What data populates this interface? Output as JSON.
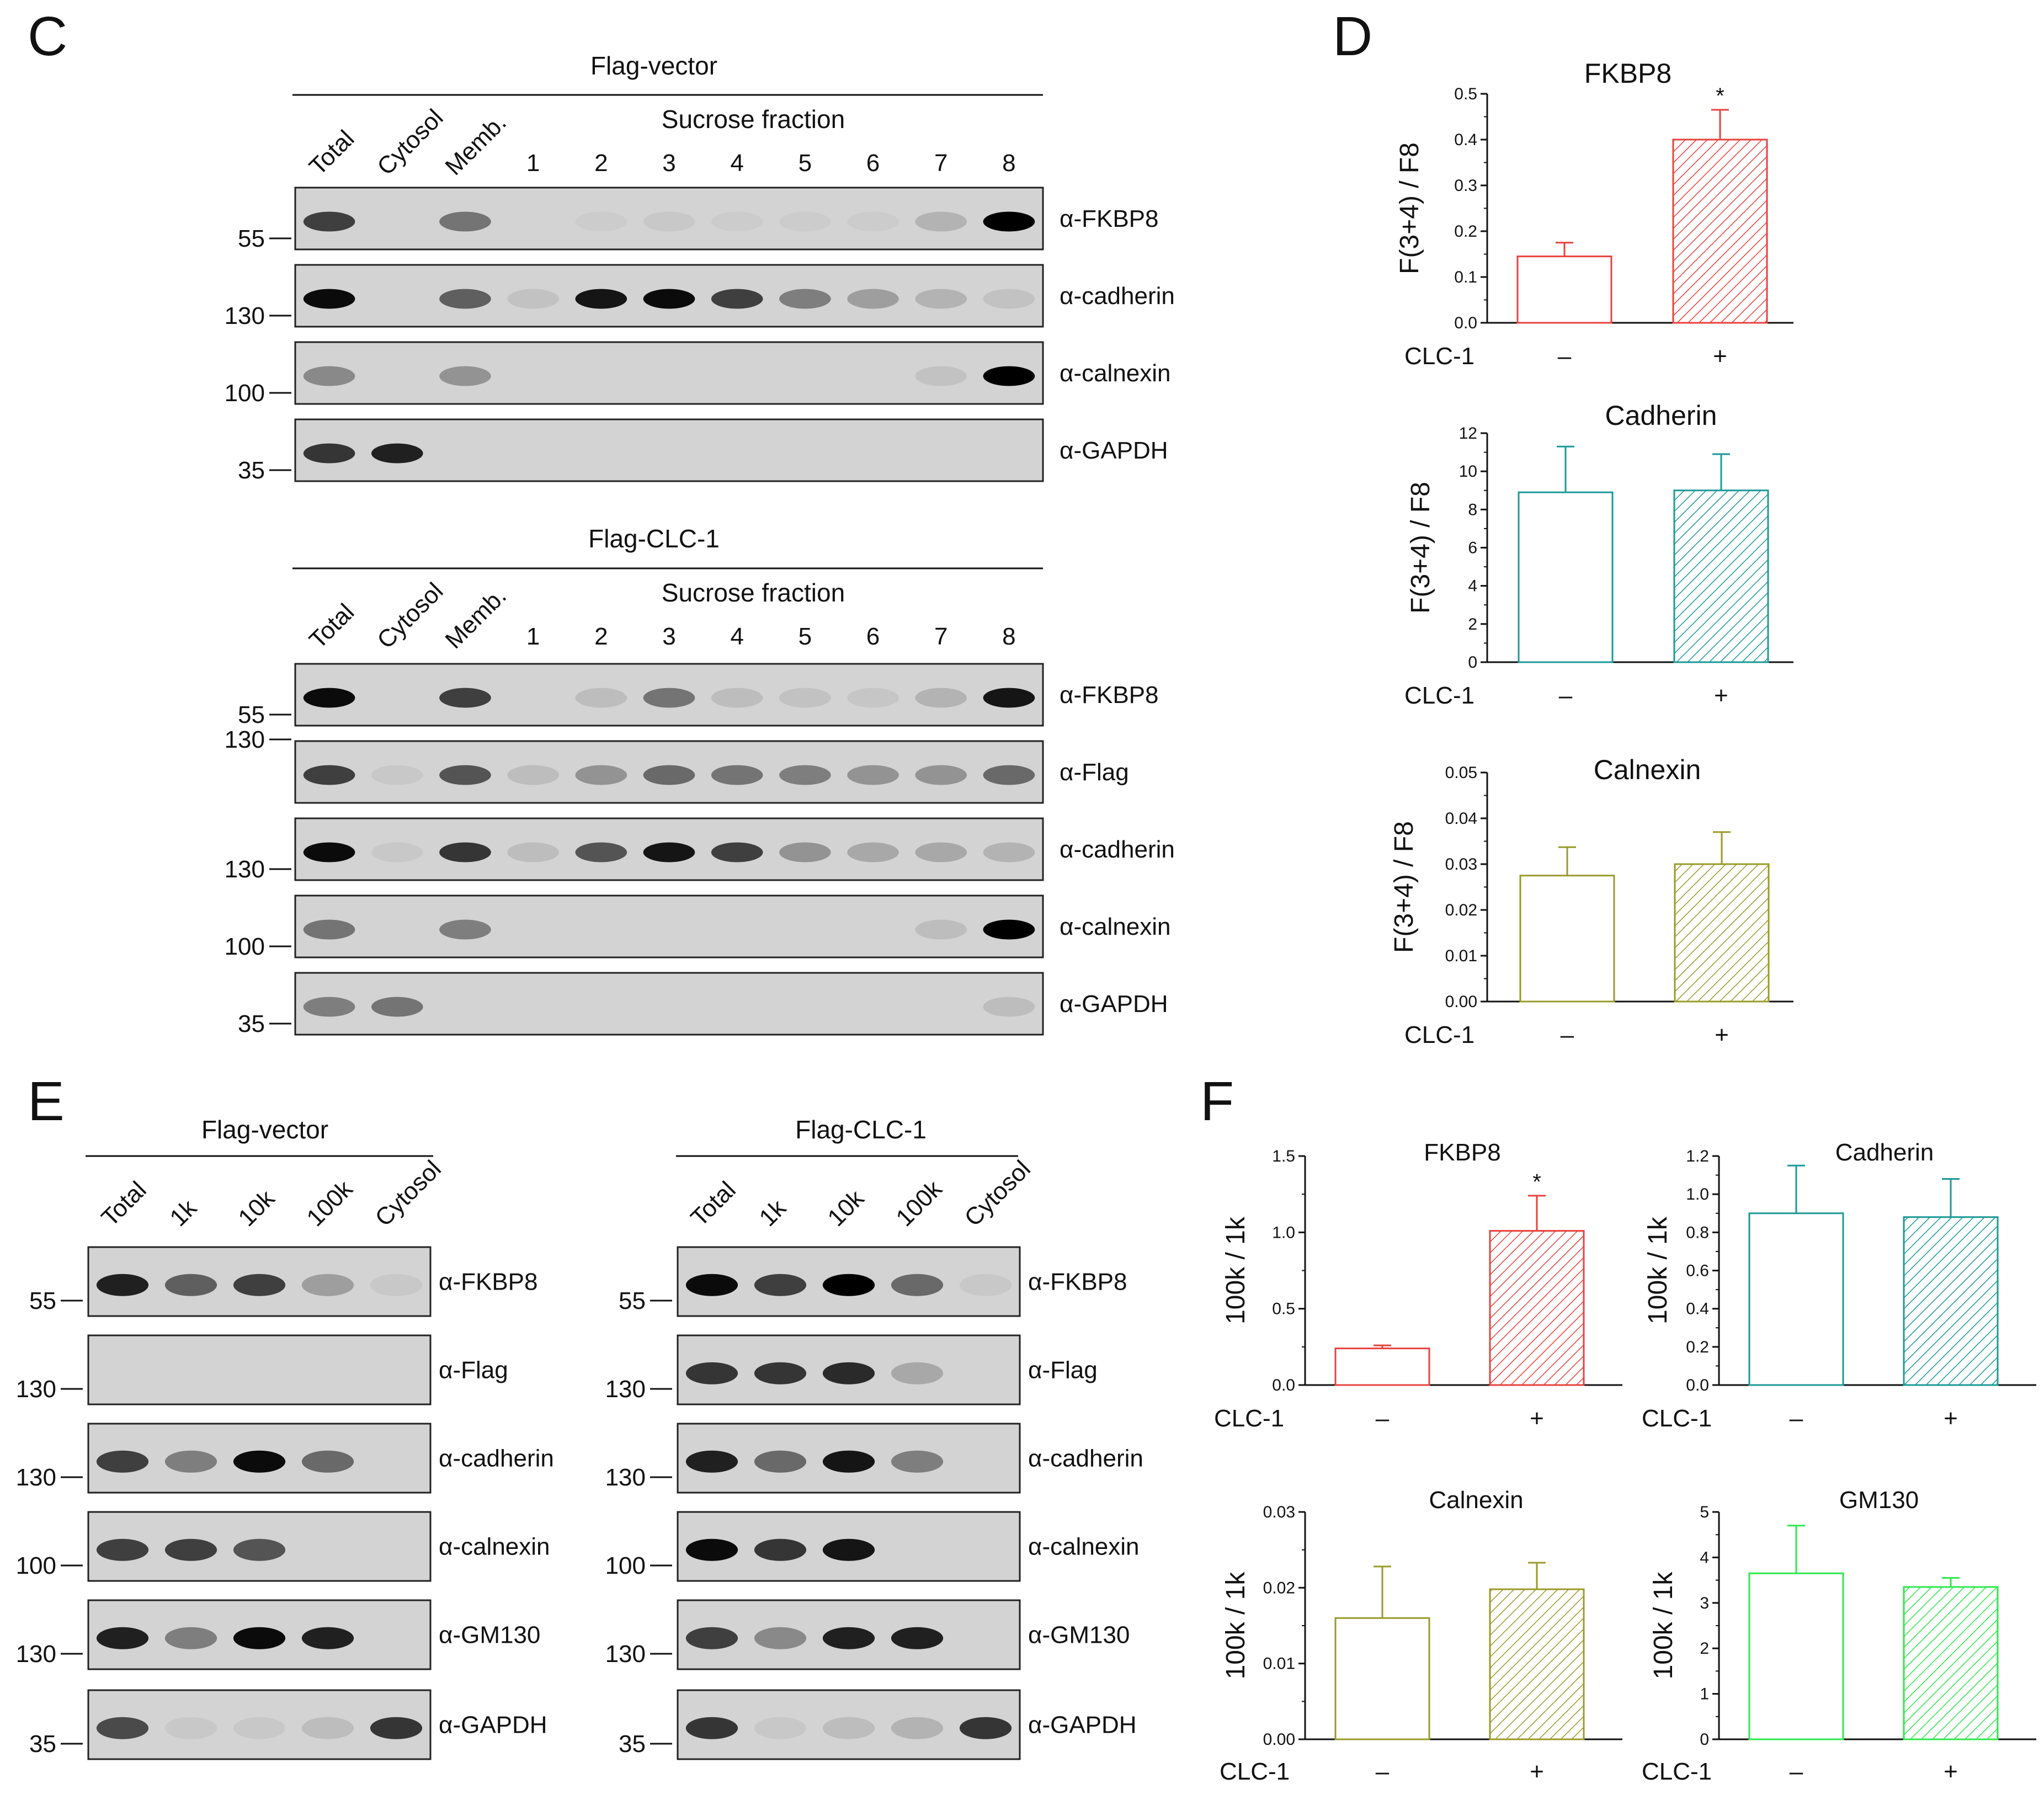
{
  "panel_c": {
    "label": "C",
    "blocks": [
      {
        "title": "Flag-vector",
        "sucrose": "Sucrose fraction",
        "lanes": [
          "Total",
          "Cytosol",
          "Memb.",
          "1",
          "2",
          "3",
          "4",
          "5",
          "6",
          "7",
          "8"
        ],
        "blots": [
          {
            "antibody": "α-FKBP8",
            "marker": "55"
          },
          {
            "antibody": "α-cadherin",
            "marker": "130"
          },
          {
            "antibody": "α-calnexin",
            "marker": "100"
          },
          {
            "antibody": "α-GAPDH",
            "marker": "35"
          }
        ]
      },
      {
        "title": "Flag-CLC-1",
        "sucrose": "Sucrose fraction",
        "lanes": [
          "Total",
          "Cytosol",
          "Memb.",
          "1",
          "2",
          "3",
          "4",
          "5",
          "6",
          "7",
          "8"
        ],
        "blots": [
          {
            "antibody": "α-FKBP8",
            "marker": "55"
          },
          {
            "antibody": "α-Flag",
            "marker": "130"
          },
          {
            "antibody": "α-cadherin",
            "marker": "130"
          },
          {
            "antibody": "α-calnexin",
            "marker": "100"
          },
          {
            "antibody": "α-GAPDH",
            "marker": "35"
          }
        ]
      }
    ]
  },
  "panel_e": {
    "label": "E",
    "blocks": [
      {
        "title": "Flag-vector",
        "lanes": [
          "Total",
          "1k",
          "10k",
          "100k",
          "Cytosol"
        ],
        "blots": [
          {
            "antibody": "α-FKBP8",
            "marker": "55"
          },
          {
            "antibody": "α-Flag",
            "marker": "130"
          },
          {
            "antibody": "α-cadherin",
            "marker": "130"
          },
          {
            "antibody": "α-calnexin",
            "marker": "100"
          },
          {
            "antibody": "α-GM130",
            "marker": "130"
          },
          {
            "antibody": "α-GAPDH",
            "marker": "35"
          }
        ]
      },
      {
        "title": "Flag-CLC-1",
        "lanes": [
          "Total",
          "1k",
          "10k",
          "100k",
          "Cytosol"
        ],
        "blots": [
          {
            "antibody": "α-FKBP8",
            "marker": "55"
          },
          {
            "antibody": "α-Flag",
            "marker": "130"
          },
          {
            "antibody": "α-cadherin",
            "marker": "130"
          },
          {
            "antibody": "α-calnexin",
            "marker": "100"
          },
          {
            "antibody": "α-GM130",
            "marker": "130"
          },
          {
            "antibody": "α-GAPDH",
            "marker": "35"
          }
        ]
      }
    ]
  },
  "panel_d_label": "D",
  "panel_f_label": "F",
  "colors": {
    "red": "#e8413c",
    "teal": "#1a9a96",
    "olive": "#9a9a28",
    "green": "#2ee84a"
  },
  "chart_data": [
    {
      "panel": "D",
      "type": "bar",
      "title": "FKBP8",
      "ylabel": "F(3+4) / F8",
      "group_label": "CLC-1",
      "categories": [
        "–",
        "+"
      ],
      "values": [
        0.145,
        0.4
      ],
      "errors": [
        0.03,
        0.065
      ],
      "significance": [
        "",
        "*"
      ],
      "ylim": [
        0,
        0.5
      ],
      "ticks": [
        "0.0",
        "0.1",
        "0.2",
        "0.3",
        "0.4",
        "0.5"
      ],
      "color": "red"
    },
    {
      "panel": "D",
      "type": "bar",
      "title": "Cadherin",
      "ylabel": "F(3+4) / F8",
      "group_label": "CLC-1",
      "categories": [
        "–",
        "+"
      ],
      "values": [
        8.9,
        9.0
      ],
      "errors": [
        2.4,
        1.9
      ],
      "significance": [
        "",
        ""
      ],
      "ylim": [
        0,
        12
      ],
      "ticks": [
        "0",
        "2",
        "4",
        "6",
        "8",
        "10",
        "12"
      ],
      "color": "teal"
    },
    {
      "panel": "D",
      "type": "bar",
      "title": "Calnexin",
      "ylabel": "F(3+4) / F8",
      "group_label": "CLC-1",
      "categories": [
        "–",
        "+"
      ],
      "values": [
        0.0275,
        0.03
      ],
      "errors": [
        0.0062,
        0.007
      ],
      "significance": [
        "",
        ""
      ],
      "ylim": [
        0,
        0.05
      ],
      "ticks": [
        "0.00",
        "0.01",
        "0.02",
        "0.03",
        "0.04",
        "0.05"
      ],
      "color": "olive"
    },
    {
      "panel": "F",
      "type": "bar",
      "title": "FKBP8",
      "ylabel": "100k / 1k",
      "group_label": "CLC-1",
      "categories": [
        "–",
        "+"
      ],
      "values": [
        0.24,
        1.01
      ],
      "errors": [
        0.02,
        0.23
      ],
      "significance": [
        "",
        "*"
      ],
      "ylim": [
        0,
        1.5
      ],
      "ticks": [
        "0.0",
        "0.5",
        "1.0",
        "1.5"
      ],
      "color": "red"
    },
    {
      "panel": "F",
      "type": "bar",
      "title": "Cadherin",
      "ylabel": "100k / 1k",
      "group_label": "CLC-1",
      "categories": [
        "–",
        "+"
      ],
      "values": [
        0.9,
        0.88
      ],
      "errors": [
        0.25,
        0.2
      ],
      "significance": [
        "",
        ""
      ],
      "ylim": [
        0,
        1.2
      ],
      "ticks": [
        "0.0",
        "0.2",
        "0.4",
        "0.6",
        "0.8",
        "1.0",
        "1.2"
      ],
      "color": "teal"
    },
    {
      "panel": "F",
      "type": "bar",
      "title": "Calnexin",
      "ylabel": "100k / 1k",
      "group_label": "CLC-1",
      "categories": [
        "–",
        "+"
      ],
      "values": [
        0.016,
        0.0198
      ],
      "errors": [
        0.0068,
        0.0035
      ],
      "significance": [
        "",
        ""
      ],
      "ylim": [
        0,
        0.03
      ],
      "ticks": [
        "0.00",
        "0.01",
        "0.02",
        "0.03"
      ],
      "color": "olive"
    },
    {
      "panel": "F",
      "type": "bar",
      "title": "GM130",
      "ylabel": "100k / 1k",
      "group_label": "CLC-1",
      "categories": [
        "–",
        "+"
      ],
      "values": [
        3.65,
        3.35
      ],
      "errors": [
        1.05,
        0.2
      ],
      "significance": [
        "",
        ""
      ],
      "ylim": [
        0,
        5
      ],
      "ticks": [
        "0",
        "1",
        "2",
        "3",
        "4",
        "5"
      ],
      "color": "green"
    }
  ]
}
